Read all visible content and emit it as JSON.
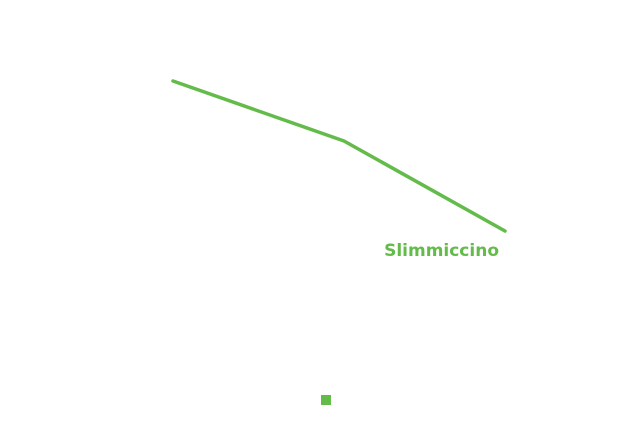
{
  "chart_data": {
    "type": "line",
    "title": "",
    "xlabel": "",
    "ylabel": "",
    "x": [
      0,
      1,
      2
    ],
    "series": [
      {
        "name": "Slimmiccino",
        "values": [
          100,
          80,
          50
        ],
        "color": "#63bb4a"
      }
    ],
    "ylim": [
      0,
      100
    ],
    "grid": false,
    "legend": "none"
  }
}
